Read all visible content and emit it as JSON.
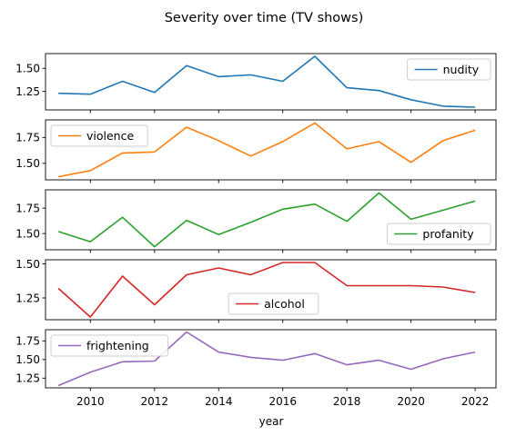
{
  "chart_data": {
    "type": "line",
    "title": "Severity over time (TV shows)",
    "xlabel": "year",
    "x": [
      2009,
      2010,
      2011,
      2012,
      2013,
      2014,
      2015,
      2016,
      2017,
      2018,
      2019,
      2020,
      2021,
      2022
    ],
    "xlim": [
      2008.6,
      2022.65
    ],
    "xticks": [
      "2010",
      "2012",
      "2014",
      "2016",
      "2018",
      "2020",
      "2022"
    ],
    "grid": false,
    "panels": [
      {
        "name": "nudity",
        "color": "#1f77b4",
        "values": [
          1.23,
          1.22,
          1.36,
          1.24,
          1.53,
          1.41,
          1.43,
          1.36,
          1.63,
          1.29,
          1.26,
          1.16,
          1.09,
          1.08
        ],
        "ylim": [
          1.05,
          1.66
        ],
        "yticks": [
          "1.25",
          "1.50"
        ],
        "legend": "right"
      },
      {
        "name": "violence",
        "color": "#ff7f0e",
        "values": [
          1.37,
          1.43,
          1.6,
          1.61,
          1.85,
          1.72,
          1.57,
          1.71,
          1.89,
          1.64,
          1.71,
          1.51,
          1.72,
          1.82
        ],
        "ylim": [
          1.34,
          1.92
        ],
        "yticks": [
          "1.50",
          "1.75"
        ],
        "legend": "left"
      },
      {
        "name": "profanity",
        "color": "#2ca02c",
        "values": [
          1.52,
          1.42,
          1.66,
          1.37,
          1.63,
          1.49,
          1.61,
          1.74,
          1.79,
          1.62,
          1.9,
          1.64,
          1.73,
          1.82
        ],
        "ylim": [
          1.34,
          1.93
        ],
        "yticks": [
          "1.50",
          "1.75"
        ],
        "legend": "right"
      },
      {
        "name": "alcohol",
        "color": "#d62728",
        "values": [
          1.32,
          1.11,
          1.41,
          1.2,
          1.42,
          1.47,
          1.42,
          1.51,
          1.51,
          1.34,
          1.34,
          1.34,
          1.33,
          1.29
        ],
        "ylim": [
          1.09,
          1.53
        ],
        "yticks": [
          "1.25",
          "1.50"
        ],
        "legend": "center"
      },
      {
        "name": "frightening",
        "color": "#9467bd",
        "values": [
          1.15,
          1.33,
          1.47,
          1.48,
          1.87,
          1.6,
          1.53,
          1.49,
          1.58,
          1.43,
          1.49,
          1.37,
          1.51,
          1.6
        ],
        "ylim": [
          1.12,
          1.9
        ],
        "yticks": [
          "1.25",
          "1.50",
          "1.75"
        ],
        "legend": "left"
      }
    ]
  }
}
